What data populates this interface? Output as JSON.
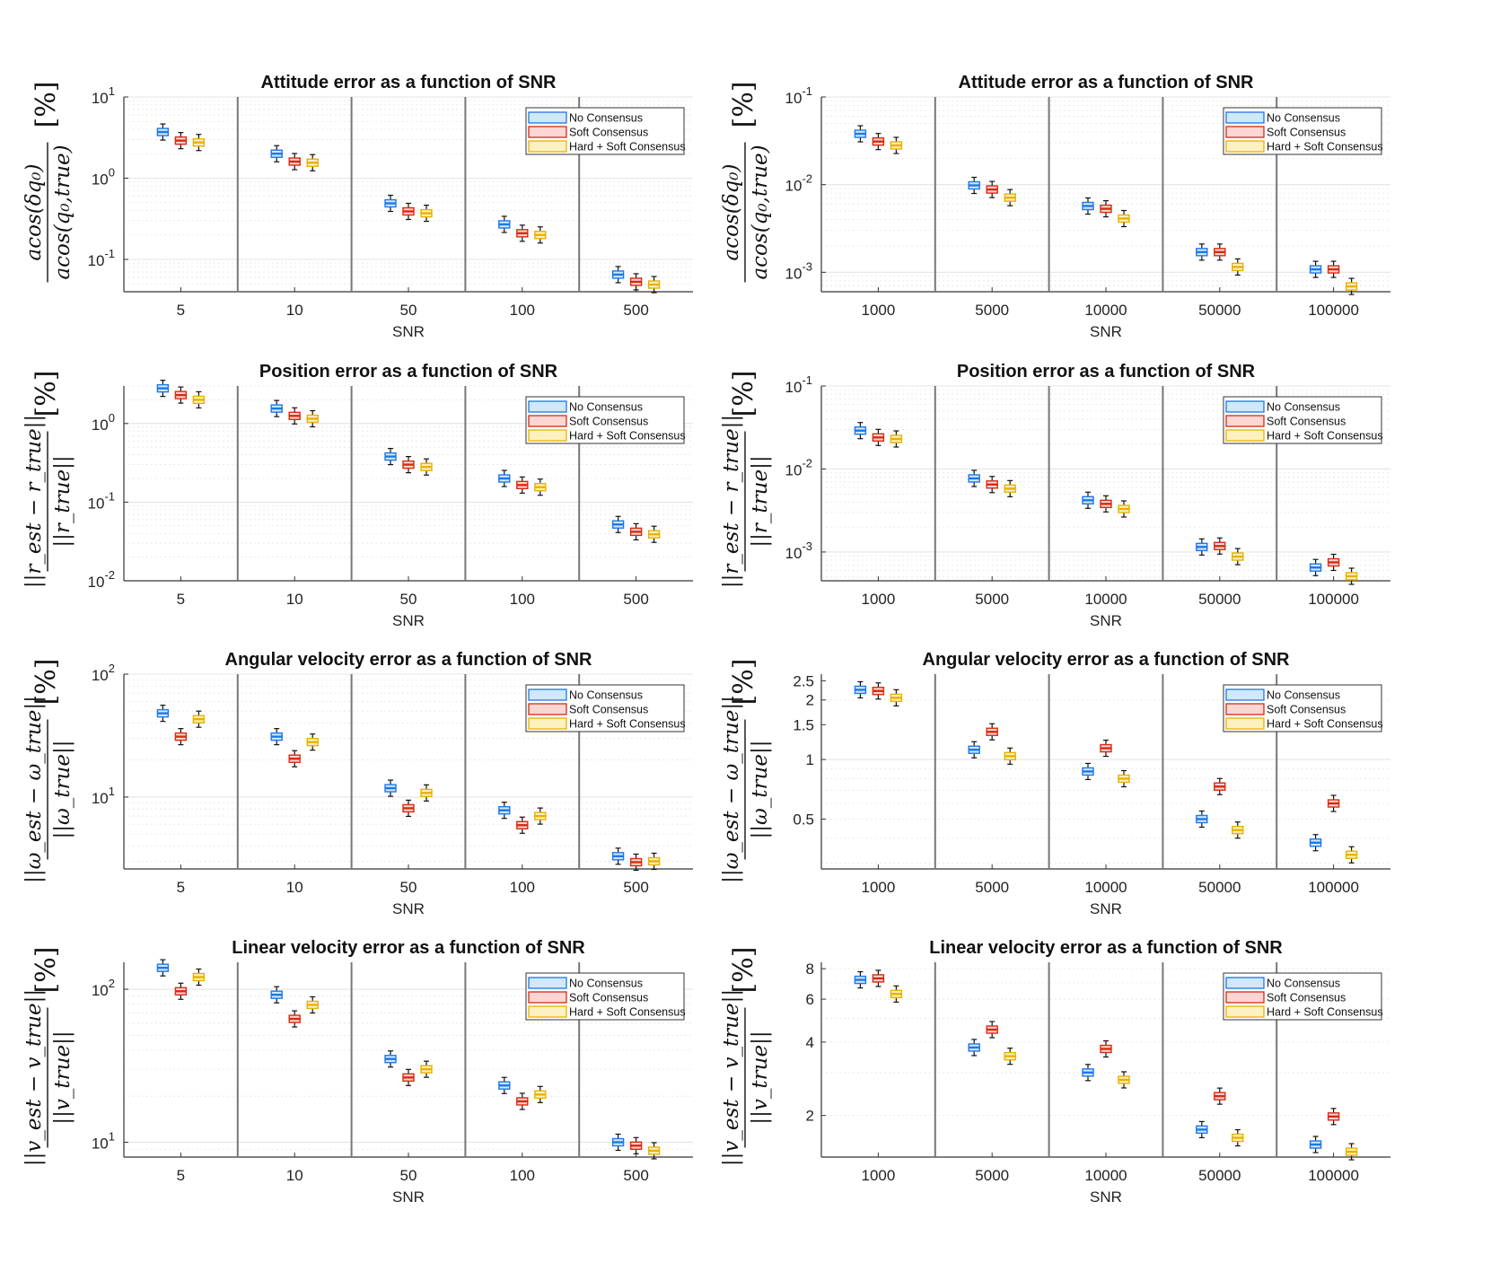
{
  "colors": {
    "no_consensus": {
      "edge": "#1f77e6",
      "fill": "#cfe9fb"
    },
    "soft_consensus": {
      "edge": "#d82a10",
      "fill": "#fbd6d2"
    },
    "hard_soft_consensus": {
      "edge": "#e8b100",
      "fill": "#fdf1c2"
    },
    "whisker": "#111111",
    "separator": "#777777",
    "grid": "#e4e4e4"
  },
  "legend": [
    "No Consensus",
    "Soft Consensus",
    "Hard + Soft Consensus"
  ],
  "chart_data": [
    {
      "type": "box",
      "scale": "log",
      "title": "Attitude error as a function of SNR",
      "xlabel": "SNR",
      "ylabel": {
        "numerator": "acos(δq₀)",
        "denominator": "acos(q₀,true)",
        "unit": "[%]"
      },
      "categories": [
        "5",
        "10",
        "50",
        "100",
        "500"
      ],
      "ylim": [
        0.04,
        10
      ],
      "yticks": [
        {
          "v": 10,
          "m": "1"
        },
        {
          "v": 1,
          "m": "0"
        },
        {
          "v": 0.1,
          "m": "-1"
        }
      ],
      "series": [
        {
          "name": "No Consensus",
          "values": [
            3.7,
            2.0,
            0.49,
            0.27,
            0.065
          ]
        },
        {
          "name": "Soft Consensus",
          "values": [
            2.9,
            1.6,
            0.39,
            0.21,
            0.053
          ]
        },
        {
          "name": "Hard + Soft Consensus",
          "values": [
            2.75,
            1.55,
            0.37,
            0.2,
            0.049
          ]
        }
      ]
    },
    {
      "type": "box",
      "scale": "log",
      "title": "Attitude error as a function of SNR",
      "xlabel": "SNR",
      "ylabel": {
        "numerator": "acos(δq₀)",
        "denominator": "acos(q₀,true)",
        "unit": "[%]"
      },
      "categories": [
        "1000",
        "5000",
        "10000",
        "50000",
        "100000"
      ],
      "ylim": [
        0.0006,
        0.1
      ],
      "yticks": [
        {
          "v": 0.1,
          "m": "-1"
        },
        {
          "v": 0.01,
          "m": "-2"
        },
        {
          "v": 0.001,
          "m": "-3"
        }
      ],
      "series": [
        {
          "name": "No Consensus",
          "values": [
            0.038,
            0.0098,
            0.0057,
            0.0017,
            0.00108
          ]
        },
        {
          "name": "Soft Consensus",
          "values": [
            0.031,
            0.0088,
            0.0053,
            0.0017,
            0.00108
          ]
        },
        {
          "name": "Hard + Soft Consensus",
          "values": [
            0.028,
            0.0071,
            0.0041,
            0.00115,
            0.00069
          ]
        }
      ]
    },
    {
      "type": "box",
      "scale": "log",
      "title": "Position error as a function of SNR",
      "xlabel": "SNR",
      "ylabel": {
        "numerator": "||r_est − r_true||",
        "denominator": "||r_true||",
        "unit": "[%]"
      },
      "categories": [
        "5",
        "10",
        "50",
        "100",
        "500"
      ],
      "ylim": [
        0.01,
        3
      ],
      "yticks": [
        {
          "v": 1,
          "m": "0"
        },
        {
          "v": 0.1,
          "m": "-1"
        },
        {
          "v": 0.01,
          "m": "-2"
        }
      ],
      "series": [
        {
          "name": "No Consensus",
          "values": [
            2.8,
            1.55,
            0.38,
            0.2,
            0.052
          ]
        },
        {
          "name": "Soft Consensus",
          "values": [
            2.3,
            1.25,
            0.3,
            0.165,
            0.042
          ]
        },
        {
          "name": "Hard + Soft Consensus",
          "values": [
            2.0,
            1.15,
            0.28,
            0.155,
            0.039
          ]
        }
      ]
    },
    {
      "type": "box",
      "scale": "log",
      "title": "Position error as a function of SNR",
      "xlabel": "SNR",
      "ylabel": {
        "numerator": "||r_est − r_true||",
        "denominator": "||r_true||",
        "unit": "[%]"
      },
      "categories": [
        "1000",
        "5000",
        "10000",
        "50000",
        "100000"
      ],
      "ylim": [
        0.00045,
        0.1
      ],
      "yticks": [
        {
          "v": 0.1,
          "m": "-1"
        },
        {
          "v": 0.01,
          "m": "-2"
        },
        {
          "v": 0.001,
          "m": "-3"
        }
      ],
      "series": [
        {
          "name": "No Consensus",
          "values": [
            0.029,
            0.0077,
            0.0042,
            0.00115,
            0.00065
          ]
        },
        {
          "name": "Soft Consensus",
          "values": [
            0.024,
            0.0065,
            0.0038,
            0.00118,
            0.00075
          ]
        },
        {
          "name": "Hard + Soft Consensus",
          "values": [
            0.023,
            0.0058,
            0.0033,
            0.00088,
            0.00051
          ]
        }
      ]
    },
    {
      "type": "box",
      "scale": "log",
      "title": "Angular velocity error as a function of SNR",
      "xlabel": "SNR",
      "ylabel": {
        "numerator": "||ω_est − ω_true||",
        "denominator": "||ω_true||",
        "unit": "[%]"
      },
      "categories": [
        "5",
        "10",
        "50",
        "100",
        "500"
      ],
      "ylim": [
        2.6,
        100
      ],
      "yticks": [
        {
          "v": 100,
          "m": "2"
        },
        {
          "v": 10,
          "m": "1"
        }
      ],
      "series": [
        {
          "name": "No Consensus",
          "values": [
            48,
            31,
            11.8,
            7.8,
            3.3
          ]
        },
        {
          "name": "Soft Consensus",
          "values": [
            31,
            20.5,
            8.1,
            5.9,
            2.95
          ]
        },
        {
          "name": "Hard + Soft Consensus",
          "values": [
            43,
            28,
            10.8,
            7.0,
            3.0
          ]
        }
      ]
    },
    {
      "type": "box",
      "scale": "log",
      "title": "Angular velocity error as a function of SNR",
      "xlabel": "SNR",
      "ylabel": {
        "numerator": "||ω_est − ω_true||",
        "denominator": "||ω_true||",
        "unit": "[%]"
      },
      "categories": [
        "1000",
        "5000",
        "10000",
        "50000",
        "100000"
      ],
      "ylim": [
        0.28,
        2.7
      ],
      "yticks": [
        {
          "v": 2.5,
          "t": "2.5"
        },
        {
          "v": 2,
          "t": "2"
        },
        {
          "v": 1.5,
          "t": "1.5"
        },
        {
          "v": 1,
          "t": "1"
        },
        {
          "v": 0.5,
          "t": "0.5"
        }
      ],
      "series": [
        {
          "name": "No Consensus",
          "values": [
            2.25,
            1.12,
            0.87,
            0.5,
            0.38
          ]
        },
        {
          "name": "Soft Consensus",
          "values": [
            2.22,
            1.38,
            1.14,
            0.73,
            0.6
          ]
        },
        {
          "name": "Hard + Soft Consensus",
          "values": [
            2.05,
            1.04,
            0.8,
            0.44,
            0.33
          ]
        }
      ]
    },
    {
      "type": "box",
      "scale": "log",
      "title": "Linear velocity error as a function of SNR",
      "xlabel": "SNR",
      "ylabel": {
        "numerator": "||v_est − v_true||",
        "denominator": "||v_true||",
        "unit": "[%]"
      },
      "categories": [
        "5",
        "10",
        "50",
        "100",
        "500"
      ],
      "ylim": [
        8,
        150
      ],
      "yticks": [
        {
          "v": 100,
          "m": "2"
        },
        {
          "v": 10,
          "m": "1"
        }
      ],
      "series": [
        {
          "name": "No Consensus",
          "values": [
            138,
            92,
            35,
            23.5,
            10
          ]
        },
        {
          "name": "Soft Consensus",
          "values": [
            97,
            64,
            26.5,
            18.5,
            9.5
          ]
        },
        {
          "name": "Hard + Soft Consensus",
          "values": [
            120,
            79,
            30,
            20.5,
            8.8
          ]
        }
      ]
    },
    {
      "type": "box",
      "scale": "log",
      "title": "Linear velocity error as a function of SNR",
      "xlabel": "SNR",
      "ylabel": {
        "numerator": "||v_est − v_true||",
        "denominator": "||v_true||",
        "unit": "[%]"
      },
      "categories": [
        "1000",
        "5000",
        "10000",
        "50000",
        "100000"
      ],
      "ylim": [
        1.35,
        8.5
      ],
      "yticks": [
        {
          "v": 8,
          "t": "8"
        },
        {
          "v": 6,
          "t": "6"
        },
        {
          "v": 4,
          "t": "4"
        },
        {
          "v": 2,
          "t": "2"
        }
      ],
      "series": [
        {
          "name": "No Consensus",
          "values": [
            7.2,
            3.8,
            3.0,
            1.75,
            1.52
          ]
        },
        {
          "name": "Soft Consensus",
          "values": [
            7.3,
            4.5,
            3.75,
            2.4,
            1.98
          ]
        },
        {
          "name": "Hard + Soft Consensus",
          "values": [
            6.3,
            3.5,
            2.8,
            1.62,
            1.42
          ]
        }
      ]
    }
  ]
}
